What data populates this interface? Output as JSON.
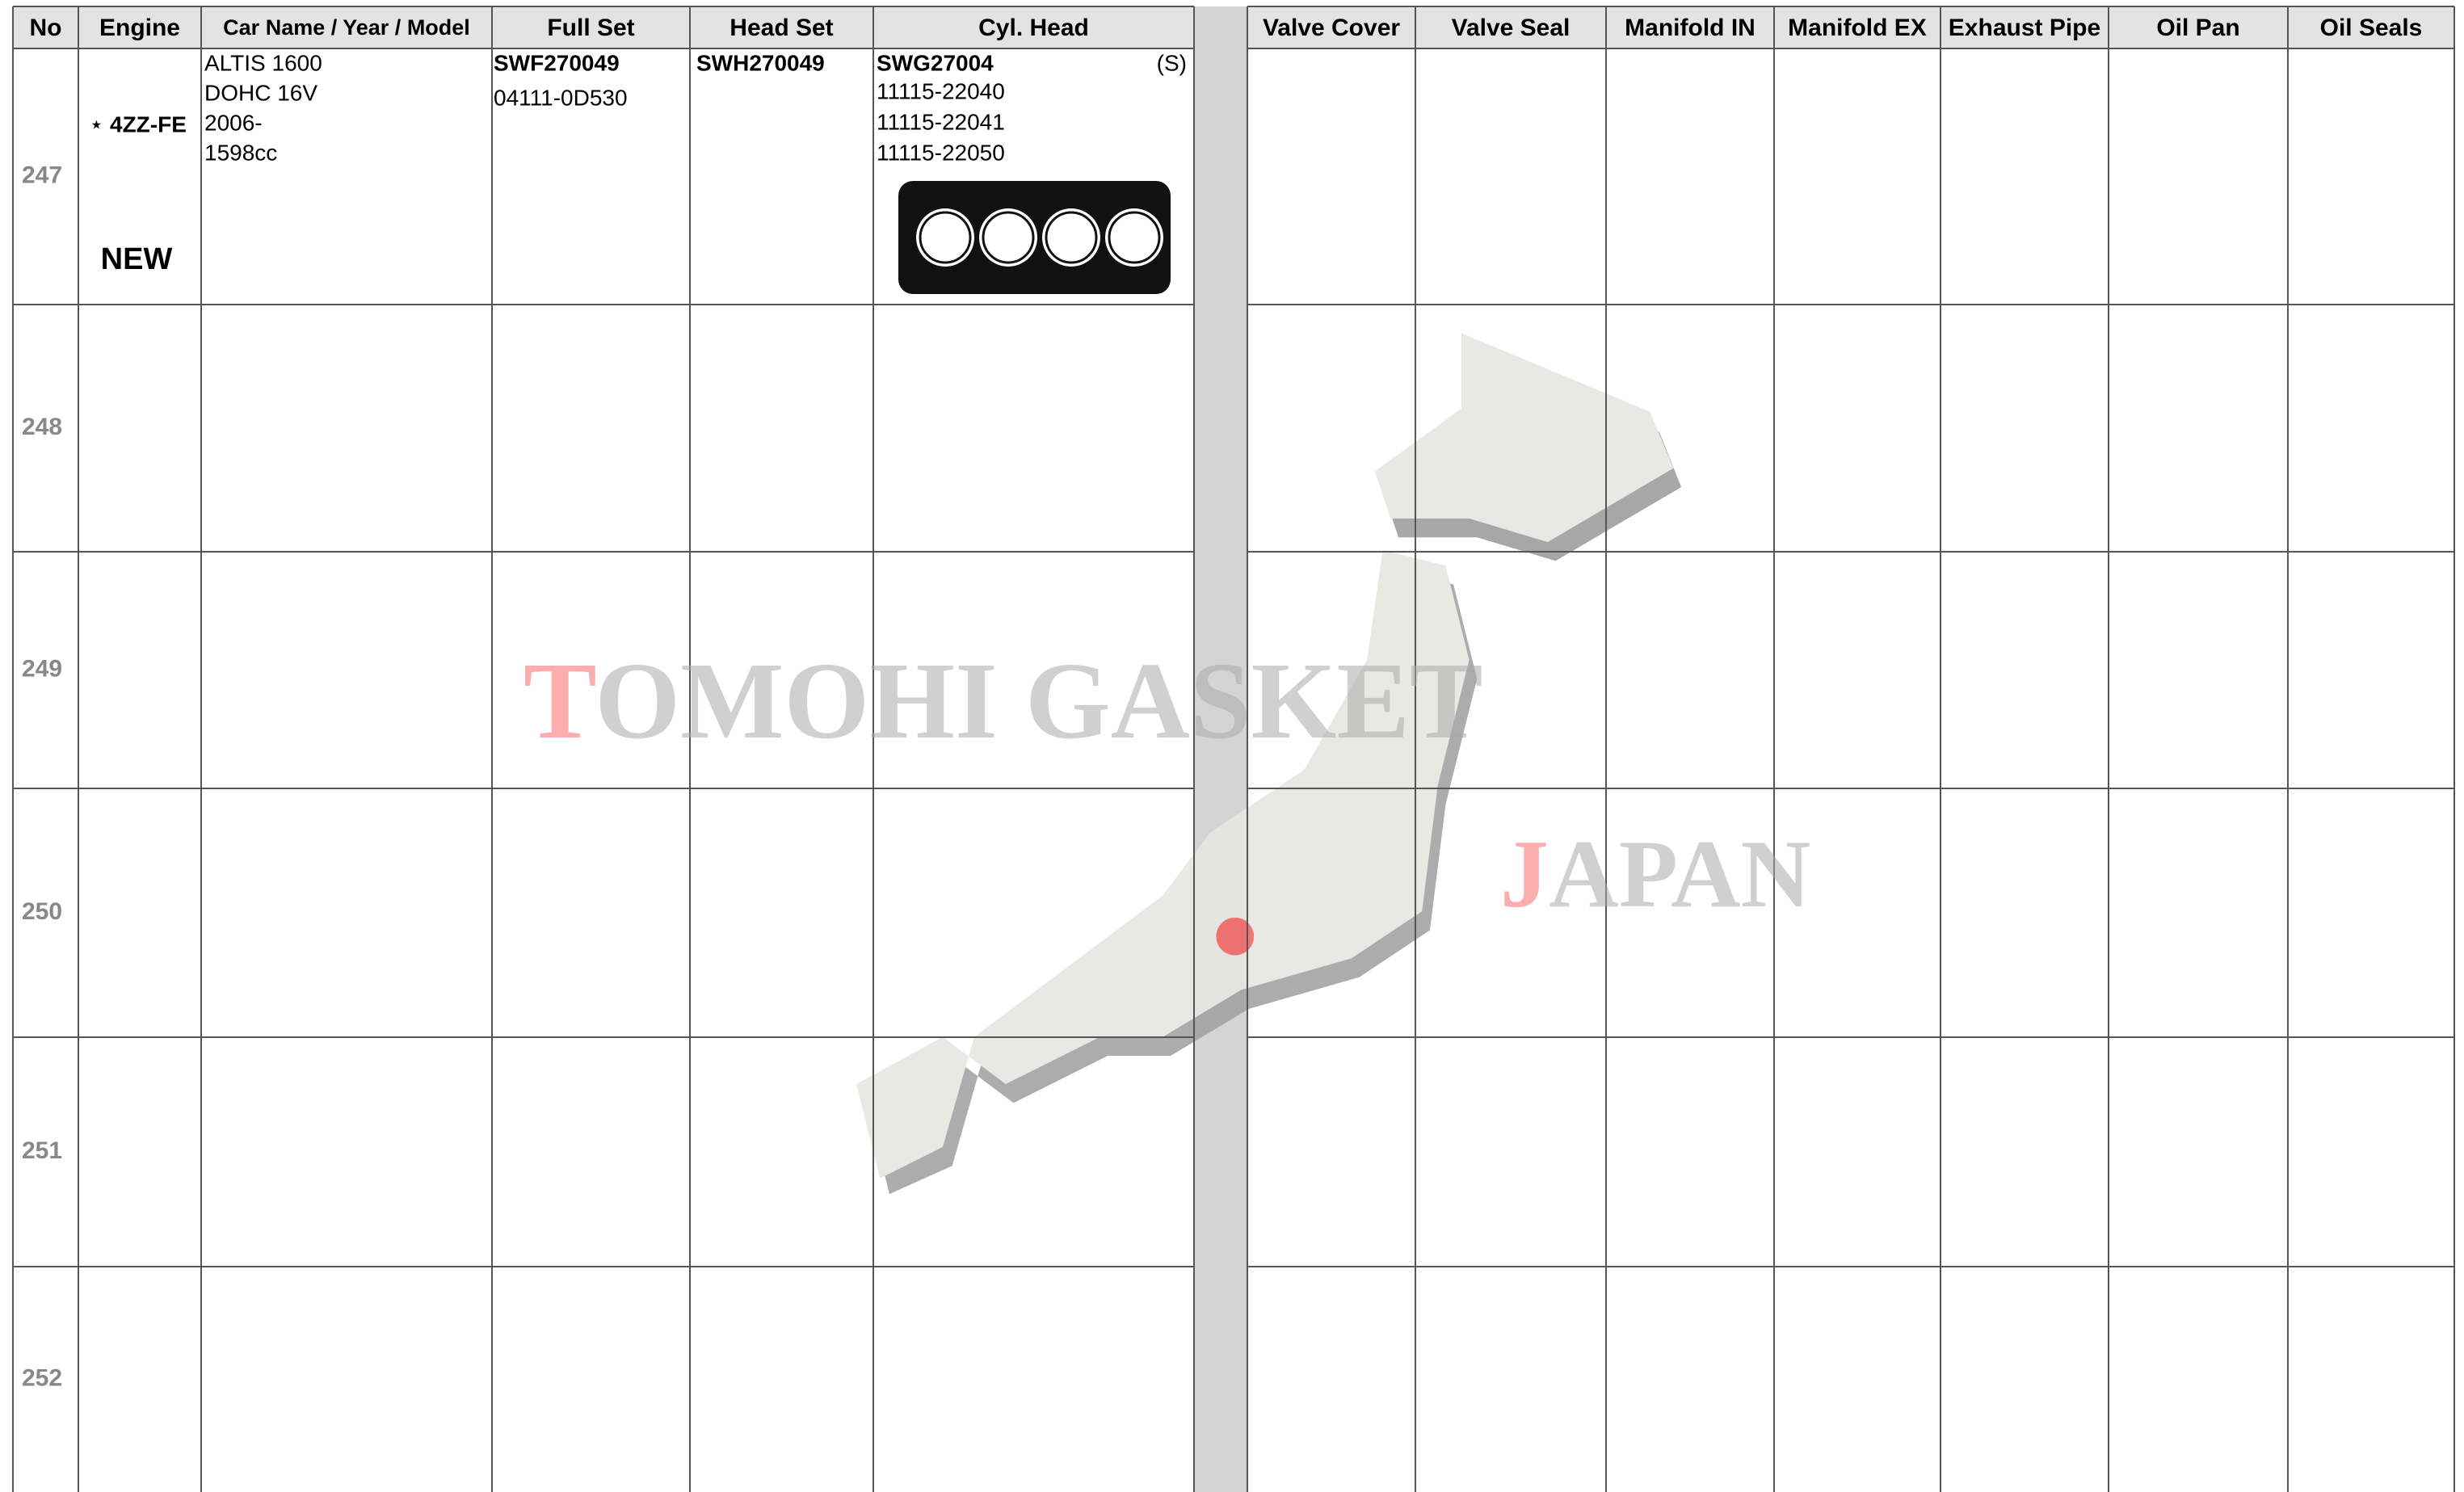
{
  "header": {
    "columns": [
      "No",
      "Engine",
      "Car Name / Year / Model",
      "Full Set",
      "Head Set",
      "Cyl. Head",
      "Valve Cover",
      "Valve Seal",
      "Manifold IN",
      "Manifold EX",
      "Exhaust Pipe",
      "Oil Pan",
      "Oil Seals"
    ]
  },
  "rows": [
    {
      "no": "247",
      "engine_mark": "⋆",
      "engine": "4ZZ-FE",
      "badge": "NEW",
      "car": [
        "ALTIS 1600",
        "DOHC 16V",
        "2006-",
        "1598cc"
      ],
      "full_set": [
        "SWF270049",
        "04111-0D530"
      ],
      "head_set": "SWH270049",
      "cyl_head": {
        "code": "SWG27004",
        "note": "(S)",
        "parts": [
          "11115-22040",
          "11115-22041",
          "11115-22050"
        ]
      }
    },
    {
      "no": "248"
    },
    {
      "no": "249"
    },
    {
      "no": "250"
    },
    {
      "no": "251"
    },
    {
      "no": "252"
    }
  ],
  "watermark": {
    "brand": "TOMOHI GASKET",
    "country": "JAPAN"
  }
}
